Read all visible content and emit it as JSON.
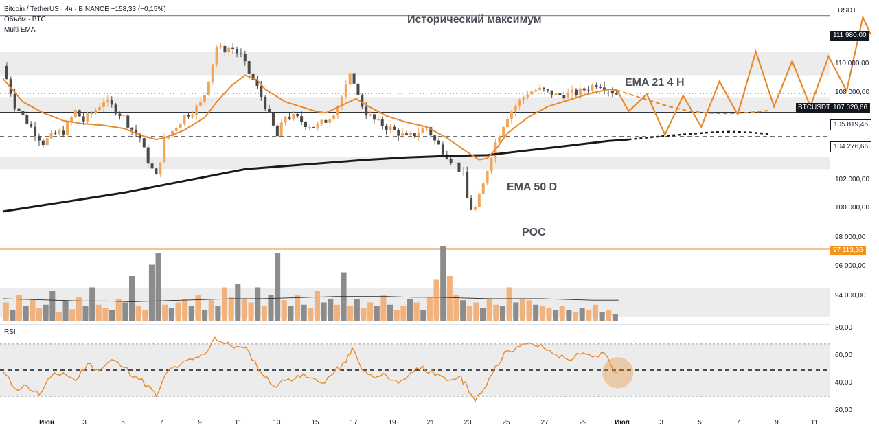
{
  "header": {
    "line1": "Bitcoin / TetherUS · 4ч · BINANCE  −158,33 (−0,15%)",
    "line2": "Объём · BTC",
    "line3": "Multi EMA"
  },
  "currency": "USDT",
  "annotations": {
    "ath": "Исторический максимум",
    "ema21": "EMA 21 4 H",
    "ema50": "EMA 50 D",
    "poc": "POC"
  },
  "price_tags": {
    "ath": "111 980,00",
    "current": "107 020,66",
    "symbol": "BTCUSDT",
    "level1": "105 819,45",
    "level2": "104 276,66",
    "poc": "97 113,36"
  },
  "rsi_title": "RSI",
  "colors": {
    "up": "#f2a65a",
    "down": "#4a4a4a",
    "ema": "#e8892a",
    "zone": "#dcdcdc",
    "volume_up": "#f2b27d",
    "volume_down": "#8c8c8c"
  },
  "chart_data": [
    {
      "type": "candlestick",
      "title": "Bitcoin / TetherUS · 4ч · BINANCE",
      "y_axis_labels": [
        "110 000,00",
        "108 000,00",
        "102 000,00",
        "100 000,00",
        "98 000,00",
        "96 000,00",
        "94 000,00"
      ],
      "x_axis_labels": [
        "Июн",
        "3",
        "5",
        "7",
        "9",
        "11",
        "13",
        "15",
        "17",
        "19",
        "21",
        "23",
        "25",
        "27",
        "29",
        "Июл",
        "3",
        "5",
        "7",
        "9",
        "11"
      ],
      "ylim": [
        92400,
        113000
      ],
      "x_domain": [
        0,
        42
      ],
      "levels": {
        "ath": 111980,
        "level1": 105819.45,
        "level2": 104276.66,
        "poc": 97113.36,
        "zones": [
          [
            108200,
            109700
          ],
          [
            105800,
            106800
          ],
          [
            102200,
            103000
          ],
          [
            92800,
            94600
          ]
        ]
      },
      "close_path": [
        [
          0,
          108800
        ],
        [
          0.6,
          106300
        ],
        [
          1,
          105600
        ],
        [
          1.5,
          104700
        ],
        [
          2,
          103900
        ],
        [
          2.5,
          104400
        ],
        [
          3,
          104600
        ],
        [
          3.6,
          105900
        ],
        [
          4,
          105300
        ],
        [
          4.6,
          106000
        ],
        [
          5,
          106600
        ],
        [
          5.5,
          106100
        ],
        [
          6,
          105500
        ],
        [
          6.3,
          104900
        ],
        [
          6.8,
          104200
        ],
        [
          7,
          103400
        ],
        [
          7.3,
          102400
        ],
        [
          7.6,
          101700
        ],
        [
          8,
          104000
        ],
        [
          8.5,
          104800
        ],
        [
          9,
          105600
        ],
        [
          9.5,
          106000
        ],
        [
          9.8,
          106400
        ],
        [
          10,
          107000
        ],
        [
          10.3,
          108500
        ],
        [
          10.6,
          110000
        ],
        [
          10.9,
          109800
        ],
        [
          11.3,
          110000
        ],
        [
          11.8,
          109400
        ],
        [
          12.2,
          108300
        ],
        [
          12.6,
          107400
        ],
        [
          13,
          106300
        ],
        [
          13.3,
          105200
        ],
        [
          13.6,
          104300
        ],
        [
          14,
          105600
        ],
        [
          14.5,
          105500
        ],
        [
          15,
          105100
        ],
        [
          15.5,
          104900
        ],
        [
          16,
          105300
        ],
        [
          16.5,
          106000
        ],
        [
          17,
          107400
        ],
        [
          17.3,
          108400
        ],
        [
          17.6,
          106800
        ],
        [
          18,
          105800
        ],
        [
          18.5,
          105200
        ],
        [
          19,
          104900
        ],
        [
          19.5,
          104600
        ],
        [
          20,
          104200
        ],
        [
          20.5,
          104500
        ],
        [
          21,
          104900
        ],
        [
          21.4,
          104000
        ],
        [
          22,
          103100
        ],
        [
          22.5,
          102400
        ],
        [
          22.8,
          101800
        ],
        [
          23,
          100300
        ],
        [
          23.3,
          99400
        ],
        [
          23.7,
          100700
        ],
        [
          24,
          102200
        ],
        [
          24.3,
          103600
        ],
        [
          24.7,
          104800
        ],
        [
          25,
          105600
        ],
        [
          25.5,
          106400
        ],
        [
          26,
          107100
        ],
        [
          26.5,
          107300
        ],
        [
          27,
          107100
        ],
        [
          27.5,
          106900
        ],
        [
          28,
          107000
        ],
        [
          28.5,
          107100
        ],
        [
          29,
          107400
        ],
        [
          29.5,
          107700
        ],
        [
          30,
          107300
        ],
        [
          30.4,
          107020
        ]
      ],
      "ema21_4h": [
        [
          0,
          108000
        ],
        [
          1,
          106500
        ],
        [
          2,
          105800
        ],
        [
          3,
          105300
        ],
        [
          4,
          105100
        ],
        [
          5,
          105000
        ],
        [
          6,
          104800
        ],
        [
          7,
          104300
        ],
        [
          7.6,
          104100
        ],
        [
          8,
          104200
        ],
        [
          9,
          104700
        ],
        [
          10,
          105500
        ],
        [
          10.6,
          106500
        ],
        [
          11.3,
          107500
        ],
        [
          12,
          108200
        ],
        [
          12.6,
          107900
        ],
        [
          13,
          107300
        ],
        [
          14,
          106500
        ],
        [
          15,
          106100
        ],
        [
          15.5,
          105900
        ],
        [
          16,
          105800
        ],
        [
          17,
          106400
        ],
        [
          17.5,
          106700
        ],
        [
          18,
          106300
        ],
        [
          19,
          105600
        ],
        [
          20,
          105200
        ],
        [
          21,
          104900
        ],
        [
          22,
          104200
        ],
        [
          23,
          103300
        ],
        [
          23.6,
          102800
        ],
        [
          24,
          102900
        ],
        [
          24.5,
          103600
        ],
        [
          25,
          104500
        ],
        [
          26,
          105500
        ],
        [
          27,
          106200
        ],
        [
          28,
          106600
        ],
        [
          29,
          107000
        ],
        [
          30,
          107300
        ],
        [
          30.4,
          107250
        ]
      ],
      "ema21_4h_projection": [
        [
          30.4,
          107250
        ],
        [
          31,
          107000
        ],
        [
          32,
          106600
        ],
        [
          33,
          106200
        ],
        [
          34,
          105900
        ],
        [
          35,
          105780
        ],
        [
          36,
          105750
        ],
        [
          37,
          105820
        ],
        [
          38,
          105950
        ]
      ],
      "ema50_d": [
        [
          0,
          99500
        ],
        [
          2,
          99900
        ],
        [
          4,
          100300
        ],
        [
          6,
          100700
        ],
        [
          8,
          101200
        ],
        [
          10,
          101700
        ],
        [
          12,
          102200
        ],
        [
          14,
          102400
        ],
        [
          16,
          102600
        ],
        [
          18,
          102800
        ],
        [
          20,
          102950
        ],
        [
          22,
          103050
        ],
        [
          24,
          103100
        ],
        [
          26,
          103400
        ],
        [
          28,
          103700
        ],
        [
          30,
          104000
        ],
        [
          31,
          104100
        ]
      ],
      "ema50_d_projection": [
        [
          31,
          104100
        ],
        [
          33,
          104350
        ],
        [
          35,
          104550
        ],
        [
          36,
          104600
        ],
        [
          37,
          104550
        ],
        [
          38,
          104450
        ]
      ],
      "forecast_path": [
        [
          30.4,
          107300
        ],
        [
          31,
          105900
        ],
        [
          31.9,
          107000
        ],
        [
          32.8,
          104400
        ],
        [
          33.7,
          106900
        ],
        [
          34.6,
          104900
        ],
        [
          35.5,
          107800
        ],
        [
          36.4,
          105700
        ],
        [
          37.3,
          109700
        ],
        [
          38.2,
          106200
        ],
        [
          39.1,
          109100
        ],
        [
          40,
          106200
        ],
        [
          40.9,
          109400
        ],
        [
          41.8,
          107200
        ],
        [
          42.6,
          111900
        ],
        [
          43,
          110800
        ]
      ]
    },
    {
      "type": "line",
      "title": "RSI",
      "y_axis_labels": [
        "80,00",
        "60,00",
        "40,00",
        "20,00"
      ],
      "ylim": [
        18,
        82
      ],
      "band": [
        30,
        70
      ],
      "midline": 50,
      "x": [
        0,
        0.6,
        1.2,
        1.8,
        2.4,
        3,
        3.6,
        4.2,
        4.8,
        5.4,
        6,
        6.6,
        7.2,
        7.6,
        8.2,
        8.8,
        9.4,
        10,
        10.5,
        11,
        11.6,
        12.2,
        12.8,
        13.4,
        14,
        14.6,
        15.2,
        15.8,
        16.4,
        17,
        17.3,
        17.8,
        18.4,
        19,
        19.6,
        20.2,
        20.8,
        21.4,
        22,
        22.6,
        23,
        23.4,
        23.8,
        24.4,
        25,
        25.6,
        26.2,
        26.8,
        27.4,
        28,
        28.6,
        29.2,
        29.8,
        30.4
      ],
      "values": [
        49,
        36,
        38,
        31,
        45,
        48,
        42,
        55,
        50,
        58,
        52,
        45,
        38,
        30,
        50,
        54,
        58,
        62,
        75,
        70,
        68,
        64,
        48,
        38,
        42,
        46,
        44,
        40,
        48,
        56,
        67,
        50,
        44,
        46,
        40,
        48,
        53,
        46,
        42,
        45,
        38,
        26,
        35,
        53,
        65,
        68,
        70,
        67,
        62,
        58,
        62,
        60,
        63,
        48
      ]
    },
    {
      "type": "bar",
      "title": "Объём · BTC",
      "note": "volume histogram, relative heights only (no volume axis is printed)",
      "x_domain": [
        0,
        30.5
      ],
      "values": [
        0.25,
        0.15,
        0.35,
        0.2,
        0.3,
        0.18,
        0.22,
        0.4,
        0.12,
        0.28,
        0.16,
        0.32,
        0.2,
        0.45,
        0.22,
        0.18,
        0.15,
        0.3,
        0.25,
        0.6,
        0.2,
        0.15,
        0.75,
        0.9,
        0.22,
        0.18,
        0.25,
        0.3,
        0.2,
        0.35,
        0.15,
        0.28,
        0.2,
        0.45,
        0.32,
        0.5,
        0.3,
        0.25,
        0.45,
        0.2,
        0.35,
        0.9,
        0.28,
        0.2,
        0.35,
        0.22,
        0.18,
        0.4,
        0.25,
        0.3,
        0.22,
        0.65,
        0.2,
        0.3,
        0.18,
        0.25,
        0.2,
        0.35,
        0.22,
        0.15,
        0.2,
        0.3,
        0.25,
        0.15,
        0.32,
        0.55,
        1.0,
        0.6,
        0.35,
        0.28,
        0.2,
        0.25,
        0.18,
        0.3,
        0.22,
        0.2,
        0.45,
        0.25,
        0.3,
        0.28,
        0.22,
        0.2,
        0.18,
        0.15,
        0.2,
        0.15,
        0.12,
        0.18,
        0.15,
        0.22,
        0.12,
        0.15,
        0.1
      ],
      "up": [
        1,
        0,
        1,
        0,
        1,
        1,
        0,
        0,
        1,
        0,
        1,
        1,
        0,
        0,
        1,
        1,
        0,
        1,
        0,
        0,
        1,
        1,
        0,
        0,
        1,
        0,
        1,
        1,
        0,
        1,
        0,
        1,
        0,
        1,
        1,
        0,
        1,
        1,
        0,
        1,
        0,
        0,
        1,
        0,
        1,
        0,
        1,
        1,
        0,
        0,
        1,
        0,
        1,
        0,
        1,
        1,
        0,
        1,
        0,
        1,
        1,
        0,
        1,
        0,
        1,
        1,
        0,
        1,
        1,
        0,
        1,
        1,
        0,
        1,
        1,
        0,
        1,
        0,
        1,
        1,
        0,
        1,
        1,
        0,
        1,
        0,
        1,
        0,
        1,
        1,
        0,
        1,
        0
      ],
      "ma_line": [
        0.3,
        0.29,
        0.28,
        0.27,
        0.27,
        0.26,
        0.27,
        0.28,
        0.29,
        0.3,
        0.3,
        0.31,
        0.32,
        0.33,
        0.33,
        0.33,
        0.32,
        0.32,
        0.31,
        0.3,
        0.3,
        0.3,
        0.29,
        0.28,
        0.28
      ]
    }
  ]
}
